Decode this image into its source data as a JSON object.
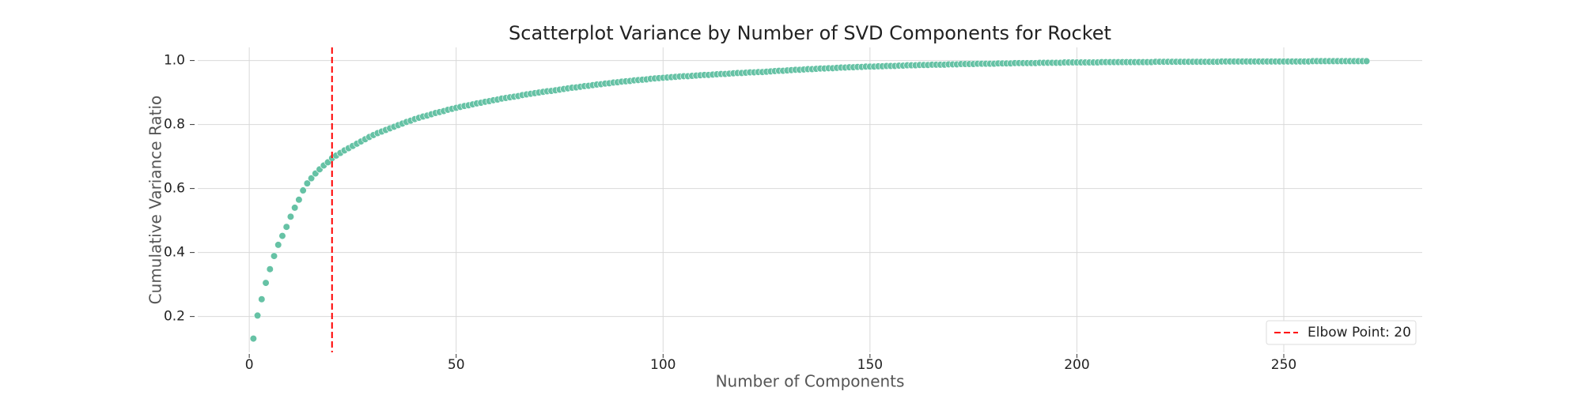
{
  "chart_data": {
    "type": "scatter",
    "title": "Scatterplot Variance by Number of SVD Components for Rocket",
    "x_label": "Number of Components",
    "y_label": "Cumulative Variance Ratio",
    "color": "#66c2a5",
    "x": [
      1,
      2,
      3,
      4,
      5,
      6,
      7,
      8,
      9,
      10,
      11,
      12,
      13,
      14,
      15,
      16,
      17,
      18,
      19,
      20,
      21,
      22,
      23,
      24,
      25,
      26,
      27,
      28,
      29,
      30,
      31,
      32,
      33,
      34,
      35,
      36,
      37,
      38,
      39,
      40,
      41,
      42,
      43,
      44,
      45,
      46,
      47,
      48,
      49,
      50,
      51,
      52,
      53,
      54,
      55,
      56,
      57,
      58,
      59,
      60,
      61,
      62,
      63,
      64,
      65,
      66,
      67,
      68,
      69,
      70,
      71,
      72,
      73,
      74,
      75,
      76,
      77,
      78,
      79,
      80,
      81,
      82,
      83,
      84,
      85,
      86,
      87,
      88,
      89,
      90,
      91,
      92,
      93,
      94,
      95,
      96,
      97,
      98,
      99,
      100,
      101,
      102,
      103,
      104,
      105,
      106,
      107,
      108,
      109,
      110,
      111,
      112,
      113,
      114,
      115,
      116,
      117,
      118,
      119,
      120,
      121,
      122,
      123,
      124,
      125,
      126,
      127,
      128,
      129,
      130,
      131,
      132,
      133,
      134,
      135,
      136,
      137,
      138,
      139,
      140,
      141,
      142,
      143,
      144,
      145,
      146,
      147,
      148,
      149,
      150,
      151,
      152,
      153,
      154,
      155,
      156,
      157,
      158,
      159,
      160,
      161,
      162,
      163,
      164,
      165,
      166,
      167,
      168,
      169,
      170,
      171,
      172,
      173,
      174,
      175,
      176,
      177,
      178,
      179,
      180,
      181,
      182,
      183,
      184,
      185,
      186,
      187,
      188,
      189,
      190,
      191,
      192,
      193,
      194,
      195,
      196,
      197,
      198,
      199,
      200,
      201,
      202,
      203,
      204,
      205,
      206,
      207,
      208,
      209,
      210,
      211,
      212,
      213,
      214,
      215,
      216,
      217,
      218,
      219,
      220,
      221,
      222,
      223,
      224,
      225,
      226,
      227,
      228,
      229,
      230,
      231,
      232,
      233,
      234,
      235,
      236,
      237,
      238,
      239,
      240,
      241,
      242,
      243,
      244,
      245,
      246,
      247,
      248,
      249,
      250,
      251,
      252,
      253,
      254,
      255,
      256,
      257,
      258,
      259,
      260,
      261,
      262,
      263,
      264,
      265,
      266,
      267,
      268,
      269,
      270
    ],
    "values": [
      0.131,
      0.203,
      0.254,
      0.305,
      0.348,
      0.389,
      0.424,
      0.452,
      0.48,
      0.512,
      0.54,
      0.565,
      0.594,
      0.616,
      0.632,
      0.647,
      0.66,
      0.672,
      0.682,
      0.695,
      0.703,
      0.711,
      0.719,
      0.726,
      0.733,
      0.74,
      0.747,
      0.754,
      0.761,
      0.767,
      0.773,
      0.778,
      0.783,
      0.788,
      0.793,
      0.798,
      0.803,
      0.808,
      0.812,
      0.817,
      0.821,
      0.825,
      0.828,
      0.832,
      0.836,
      0.839,
      0.842,
      0.846,
      0.849,
      0.852,
      0.855,
      0.858,
      0.86,
      0.863,
      0.866,
      0.868,
      0.871,
      0.873,
      0.876,
      0.878,
      0.881,
      0.883,
      0.885,
      0.887,
      0.889,
      0.892,
      0.894,
      0.896,
      0.898,
      0.9,
      0.902,
      0.904,
      0.905,
      0.907,
      0.909,
      0.911,
      0.913,
      0.915,
      0.916,
      0.918,
      0.92,
      0.921,
      0.923,
      0.925,
      0.926,
      0.928,
      0.929,
      0.931,
      0.932,
      0.934,
      0.935,
      0.936,
      0.938,
      0.939,
      0.94,
      0.941,
      0.943,
      0.944,
      0.945,
      0.946,
      0.947,
      0.948,
      0.949,
      0.95,
      0.951,
      0.951,
      0.952,
      0.953,
      0.954,
      0.955,
      0.955,
      0.956,
      0.957,
      0.958,
      0.958,
      0.959,
      0.96,
      0.961,
      0.961,
      0.962,
      0.963,
      0.963,
      0.964,
      0.964,
      0.965,
      0.966,
      0.967,
      0.968,
      0.968,
      0.969,
      0.97,
      0.971,
      0.971,
      0.972,
      0.973,
      0.973,
      0.974,
      0.975,
      0.975,
      0.976,
      0.976,
      0.977,
      0.978,
      0.978,
      0.979,
      0.979,
      0.98,
      0.98,
      0.981,
      0.981,
      0.981,
      0.982,
      0.982,
      0.983,
      0.983,
      0.983,
      0.984,
      0.984,
      0.985,
      0.985,
      0.985,
      0.986,
      0.986,
      0.986,
      0.987,
      0.987,
      0.987,
      0.987,
      0.988,
      0.988,
      0.988,
      0.989,
      0.989,
      0.989,
      0.989,
      0.99,
      0.99,
      0.99,
      0.99,
      0.99,
      0.991,
      0.991,
      0.991,
      0.991,
      0.992,
      0.992,
      0.992,
      0.992,
      0.992,
      0.992,
      0.993,
      0.993,
      0.993,
      0.993,
      0.993,
      0.993,
      0.994,
      0.994,
      0.994,
      0.994,
      0.994,
      0.994,
      0.994,
      0.994,
      0.994,
      0.995,
      0.995,
      0.995,
      0.995,
      0.995,
      0.995,
      0.995,
      0.995,
      0.995,
      0.995,
      0.995,
      0.995,
      0.995,
      0.996,
      0.996,
      0.996,
      0.996,
      0.996,
      0.996,
      0.996,
      0.996,
      0.996,
      0.996,
      0.996,
      0.996,
      0.996,
      0.996,
      0.996,
      0.996,
      0.997,
      0.997,
      0.997,
      0.997,
      0.997,
      0.997,
      0.997,
      0.997,
      0.997,
      0.997,
      0.997,
      0.997,
      0.997,
      0.997,
      0.997,
      0.997,
      0.997,
      0.997,
      0.997,
      0.997,
      0.997,
      0.997,
      0.998,
      0.998,
      0.998,
      0.998,
      0.998,
      0.998,
      0.998,
      0.998,
      0.998,
      0.998,
      0.998,
      0.998,
      0.998,
      0.998
    ],
    "elbow": {
      "value": 20,
      "label": "Elbow Point: 20",
      "color": "#ff0000"
    },
    "xlim": [
      -12.45,
      283.45
    ],
    "ylim": [
      0.088,
      1.041
    ],
    "xticks": [
      0,
      50,
      100,
      150,
      200,
      250
    ],
    "yticks": [
      0.2,
      0.4,
      0.6,
      0.8,
      {
        "value": 1.0,
        "label": "1.0"
      }
    ],
    "grid": true,
    "legend_position": "lower right"
  }
}
